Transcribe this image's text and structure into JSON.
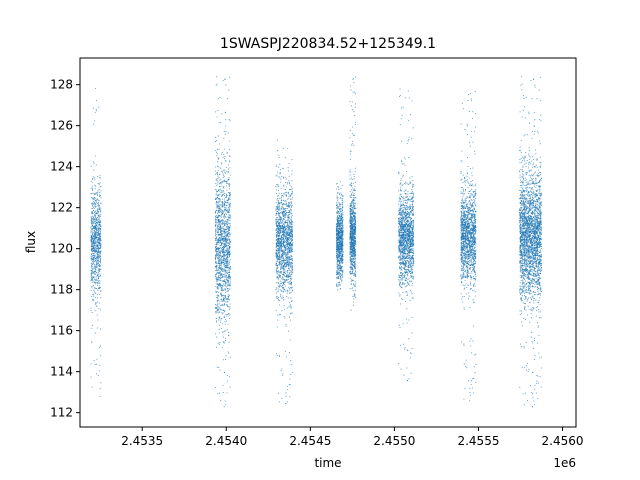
{
  "chart_data": {
    "type": "scatter",
    "title": "1SWASPJ220834.52+125349.1",
    "xlabel": "time",
    "ylabel": "flux",
    "x_offset_label": "1e6",
    "xlim": [
      2453130,
      2456080
    ],
    "ylim": [
      111.3,
      129.3
    ],
    "x_ticks": [
      2453500,
      2454000,
      2454500,
      2455000,
      2455500,
      2456000
    ],
    "x_tick_labels": [
      "2.4535",
      "2.4540",
      "2.4545",
      "2.4550",
      "2.4555",
      "2.4560"
    ],
    "y_ticks": [
      112,
      114,
      116,
      118,
      120,
      122,
      124,
      126,
      128
    ],
    "y_tick_labels": [
      "112",
      "114",
      "116",
      "118",
      "120",
      "122",
      "124",
      "126",
      "128"
    ],
    "grid": false,
    "marker_color": "#1f77b4",
    "series": [
      {
        "seasons": [
          {
            "x_start": 2453195,
            "x_end": 2453255,
            "y_center": 120.3,
            "y_spread": 1.3,
            "y_min": 112.4,
            "y_max": 128.3,
            "density": "medium"
          },
          {
            "x_start": 2453935,
            "x_end": 2454025,
            "y_center": 120.2,
            "y_spread": 1.8,
            "y_min": 112.1,
            "y_max": 128.4,
            "density": "high"
          },
          {
            "x_start": 2454295,
            "x_end": 2454395,
            "y_center": 120.3,
            "y_spread": 1.3,
            "y_min": 112.3,
            "y_max": 125.3,
            "density": "high"
          },
          {
            "x_start": 2454655,
            "x_end": 2454695,
            "y_center": 120.4,
            "y_spread": 0.9,
            "y_min": 117.9,
            "y_max": 123.3,
            "density": "medium"
          },
          {
            "x_start": 2454735,
            "x_end": 2454770,
            "y_center": 120.6,
            "y_spread": 1.0,
            "y_min": 116.8,
            "y_max": 128.4,
            "density": "medium"
          },
          {
            "x_start": 2455025,
            "x_end": 2455115,
            "y_center": 120.5,
            "y_spread": 1.1,
            "y_min": 113.4,
            "y_max": 127.8,
            "density": "high"
          },
          {
            "x_start": 2455395,
            "x_end": 2455485,
            "y_center": 120.6,
            "y_spread": 1.1,
            "y_min": 112.4,
            "y_max": 127.7,
            "density": "high"
          },
          {
            "x_start": 2455745,
            "x_end": 2455875,
            "y_center": 120.6,
            "y_spread": 1.5,
            "y_min": 112.1,
            "y_max": 128.4,
            "density": "very-high"
          }
        ]
      }
    ]
  }
}
